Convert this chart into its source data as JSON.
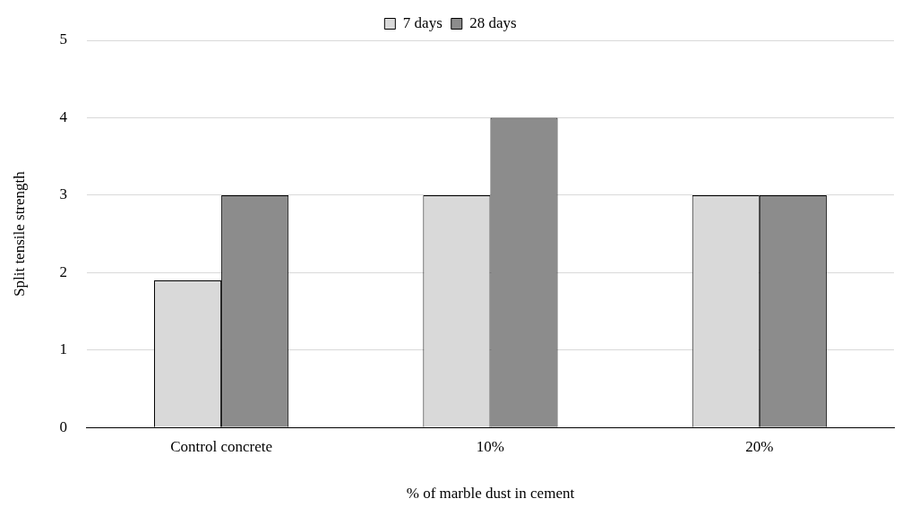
{
  "chart_data": {
    "type": "bar",
    "xlabel": "% of marble dust in cement",
    "ylabel": "Split tensile strength",
    "categories": [
      "Control concrete",
      "10%",
      "20%"
    ],
    "series": [
      {
        "name": "7 days",
        "color": "#d9d9d9",
        "values": [
          1.9,
          3,
          3
        ]
      },
      {
        "name": "28 days",
        "color": "#8c8c8c",
        "values": [
          3,
          4,
          3
        ]
      }
    ],
    "ylim": [
      0,
      5
    ],
    "yticks": [
      0,
      1,
      2,
      3,
      4,
      5
    ],
    "grid": "y",
    "legend": "top"
  }
}
